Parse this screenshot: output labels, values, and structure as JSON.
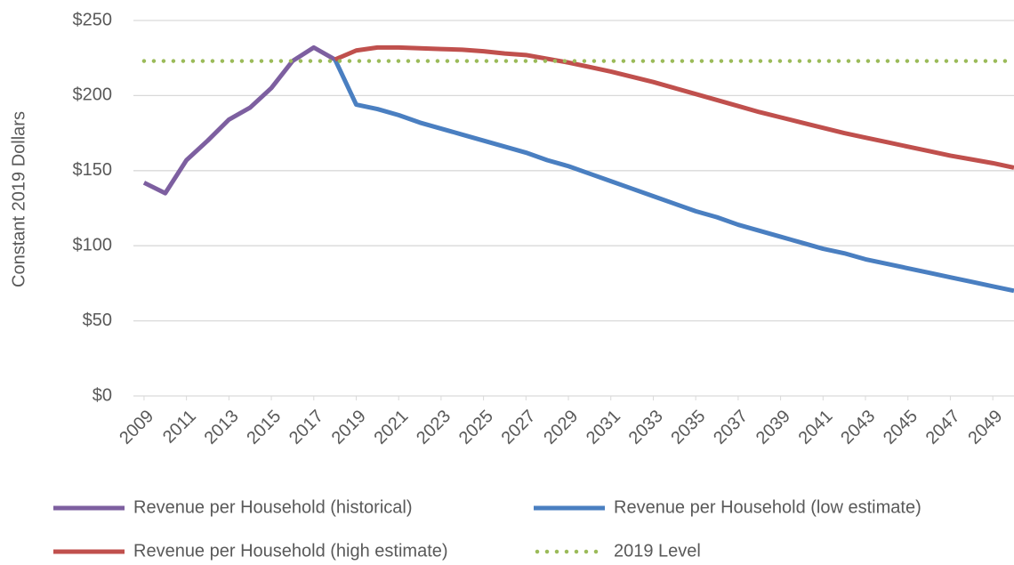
{
  "chart_data": {
    "type": "line",
    "y_label": "Constant 2019 Dollars",
    "x": [
      2009,
      2010,
      2011,
      2012,
      2013,
      2014,
      2015,
      2016,
      2017,
      2018,
      2019,
      2020,
      2021,
      2022,
      2023,
      2024,
      2025,
      2026,
      2027,
      2028,
      2029,
      2030,
      2031,
      2032,
      2033,
      2034,
      2035,
      2036,
      2037,
      2038,
      2039,
      2040,
      2041,
      2042,
      2043,
      2044,
      2045,
      2046,
      2047,
      2048,
      2049,
      2050
    ],
    "xlim": [
      2008.5,
      2050
    ],
    "xticks": [
      2009,
      2011,
      2013,
      2015,
      2017,
      2019,
      2021,
      2023,
      2025,
      2027,
      2029,
      2031,
      2033,
      2035,
      2037,
      2039,
      2041,
      2043,
      2045,
      2047,
      2049
    ],
    "ylim": [
      0,
      250
    ],
    "yticks": [
      {
        "value": 0,
        "label": "$0"
      },
      {
        "value": 50,
        "label": "$50"
      },
      {
        "value": 100,
        "label": "$100"
      },
      {
        "value": 150,
        "label": "$150"
      },
      {
        "value": 200,
        "label": "$200"
      },
      {
        "value": 250,
        "label": "$250"
      }
    ],
    "grid": true,
    "legend": "bottom",
    "series": [
      {
        "name": "Revenue per Household (historical)",
        "color": "#7d5fa0",
        "style": "solid",
        "values": [
          142,
          135,
          157,
          170,
          184,
          192,
          205,
          223,
          232,
          224,
          null,
          null,
          null,
          null,
          null,
          null,
          null,
          null,
          null,
          null,
          null,
          null,
          null,
          null,
          null,
          null,
          null,
          null,
          null,
          null,
          null,
          null,
          null,
          null,
          null,
          null,
          null,
          null,
          null,
          null,
          null,
          null
        ]
      },
      {
        "name": "Revenue per Household (low estimate)",
        "color": "#4a7fc1",
        "style": "solid",
        "values": [
          null,
          null,
          null,
          null,
          null,
          null,
          null,
          null,
          null,
          224,
          194,
          191,
          187,
          182,
          178,
          174,
          170,
          166,
          162,
          157,
          153,
          148,
          143,
          138,
          133,
          128,
          123,
          119,
          114,
          110,
          106,
          102,
          98,
          95,
          91,
          88,
          85,
          82,
          79,
          76,
          73,
          70
        ]
      },
      {
        "name": "Revenue per Household (high estimate)",
        "color": "#c0504d",
        "style": "solid",
        "values": [
          null,
          null,
          null,
          null,
          null,
          null,
          null,
          null,
          null,
          224,
          230,
          232,
          232,
          231.5,
          231,
          230.5,
          229.5,
          228,
          227,
          224.5,
          222,
          219,
          216,
          212.5,
          209,
          205,
          201,
          197,
          193,
          189,
          185.5,
          182,
          178.5,
          175,
          172,
          169,
          166,
          163,
          160,
          157.5,
          155,
          152
        ]
      },
      {
        "name": "2019 Level",
        "color": "#9bbb59",
        "style": "dotted",
        "values": [
          223,
          223,
          223,
          223,
          223,
          223,
          223,
          223,
          223,
          223,
          223,
          223,
          223,
          223,
          223,
          223,
          223,
          223,
          223,
          223,
          223,
          223,
          223,
          223,
          223,
          223,
          223,
          223,
          223,
          223,
          223,
          223,
          223,
          223,
          223,
          223,
          223,
          223,
          223,
          223,
          223,
          223
        ]
      }
    ]
  }
}
